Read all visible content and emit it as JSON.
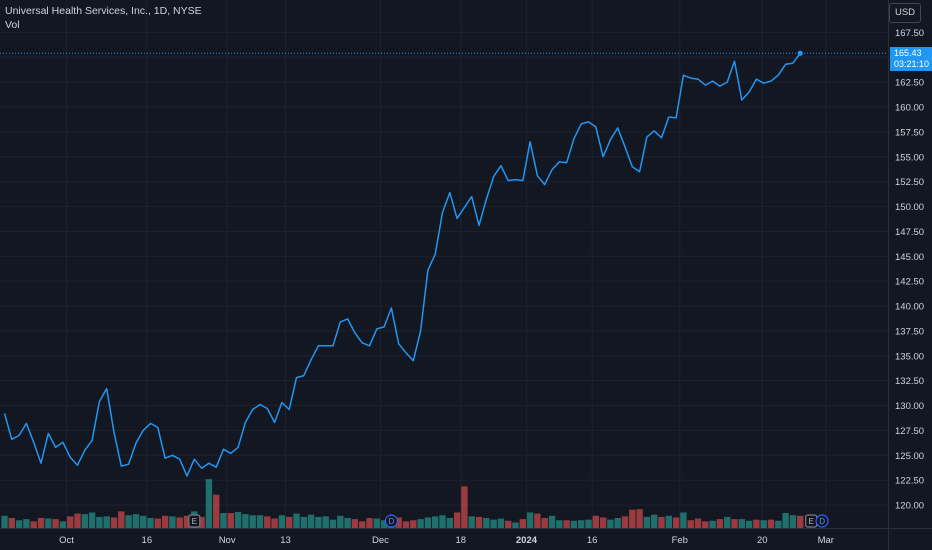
{
  "legend": {
    "symbol": "Universal Health Services, Inc., 1D, NYSE",
    "volume_label": "Vol"
  },
  "currency": "USD",
  "last_price": {
    "price": "165.43",
    "countdown": "03:21:10"
  },
  "colors": {
    "background": "#131722",
    "line": "#2196f3",
    "grid": "#1e222d",
    "volume_up": "#26a69a",
    "volume_down": "#ef5350",
    "axis_text": "#d1d4dc"
  },
  "chart_data": {
    "type": "line",
    "x_ticks": [
      "Oct",
      "16",
      "Nov",
      "13",
      "Dec",
      "18",
      "2024",
      "16",
      "Feb",
      "20",
      "Mar"
    ],
    "y_ticks": [
      "120.00",
      "122.50",
      "125.00",
      "127.50",
      "130.00",
      "132.50",
      "135.00",
      "137.50",
      "140.00",
      "142.50",
      "145.00",
      "147.50",
      "150.00",
      "152.50",
      "155.00",
      "157.50",
      "160.00",
      "162.50",
      "165.00",
      "167.50"
    ],
    "ylim": [
      118.3,
      169.2
    ],
    "x_range": [
      0,
      116.6
    ],
    "tick_index": [
      8.5,
      19.5,
      30.5,
      38.5,
      51.5,
      62.5,
      71.5,
      80.5,
      92.5,
      103.8,
      112.5
    ],
    "close": [
      129.2,
      126.6,
      127.0,
      128.2,
      126.3,
      124.2,
      127.2,
      125.8,
      126.3,
      124.8,
      124.0,
      125.5,
      126.5,
      130.4,
      131.7,
      127.3,
      123.9,
      124.1,
      126.2,
      127.5,
      128.2,
      127.8,
      124.7,
      125.0,
      124.6,
      122.9,
      124.6,
      123.7,
      124.2,
      123.8,
      125.6,
      125.2,
      125.8,
      128.3,
      129.6,
      130.1,
      129.7,
      128.3,
      130.3,
      129.6,
      132.8,
      133.0,
      134.6,
      136.0,
      136.0,
      136.0,
      138.4,
      138.7,
      137.3,
      136.3,
      136.0,
      137.7,
      137.9,
      139.8,
      136.2,
      135.3,
      134.5,
      137.5,
      143.6,
      145.2,
      149.4,
      151.4,
      148.8,
      149.9,
      151.0,
      148.1,
      150.7,
      153.0,
      154.1,
      152.6,
      152.7,
      152.6,
      156.5,
      153.1,
      152.2,
      153.7,
      154.5,
      154.4,
      156.8,
      158.3,
      158.5,
      158.0,
      155.0,
      156.7,
      157.9,
      156.0,
      154.0,
      153.5,
      157.0,
      157.6,
      156.9,
      159.0,
      158.9,
      163.2,
      162.9,
      162.8,
      162.2,
      162.6,
      162.1,
      162.5,
      164.6,
      160.7,
      161.5,
      162.8,
      162.4,
      162.6,
      163.2,
      164.3,
      164.4,
      165.4
    ],
    "volume": [
      22,
      18,
      14,
      16,
      12,
      18,
      17,
      16,
      12,
      21,
      26,
      25,
      28,
      20,
      21,
      19,
      30,
      23,
      25,
      22,
      18,
      17,
      22,
      21,
      19,
      22,
      30,
      20,
      88,
      60,
      27,
      27,
      29,
      25,
      23,
      23,
      21,
      17,
      23,
      20,
      26,
      20,
      24,
      20,
      21,
      15,
      22,
      18,
      16,
      12,
      18,
      17,
      14,
      16,
      19,
      12,
      14,
      16,
      19,
      21,
      23,
      18,
      28,
      75,
      21,
      20,
      18,
      15,
      17,
      13,
      10,
      16,
      28,
      26,
      18,
      22,
      14,
      14,
      13,
      14,
      15,
      22,
      19,
      15,
      18,
      21,
      33,
      34,
      20,
      24,
      20,
      22,
      19,
      28,
      14,
      17,
      12,
      13,
      16,
      20,
      16,
      16,
      13,
      15,
      14,
      15,
      13,
      27,
      23,
      22
    ],
    "volume_direction": [
      1,
      -1,
      1,
      1,
      -1,
      -1,
      1,
      -1,
      1,
      -1,
      -1,
      1,
      1,
      1,
      1,
      -1,
      -1,
      1,
      1,
      1,
      1,
      -1,
      -1,
      1,
      -1,
      -1,
      1,
      -1,
      1,
      -1,
      1,
      -1,
      1,
      1,
      1,
      1,
      -1,
      -1,
      1,
      -1,
      1,
      1,
      1,
      1,
      1,
      1,
      1,
      1,
      -1,
      -1,
      -1,
      1,
      1,
      1,
      -1,
      -1,
      -1,
      1,
      1,
      1,
      1,
      1,
      -1,
      -1,
      1,
      -1,
      1,
      1,
      1,
      -1,
      1,
      -1,
      1,
      -1,
      -1,
      1,
      1,
      -1,
      1,
      1,
      1,
      -1,
      -1,
      1,
      1,
      -1,
      -1,
      -1,
      1,
      1,
      -1,
      1,
      -1,
      1,
      -1,
      -1,
      -1,
      1,
      -1,
      1,
      -1,
      1,
      1,
      -1,
      1,
      -1,
      1,
      1,
      1,
      -1
    ],
    "event_markers": [
      {
        "index": 26,
        "label": "E"
      },
      {
        "index": 53,
        "label": "D"
      },
      {
        "index": 110.5,
        "label": "E"
      },
      {
        "index": 112,
        "label": "D"
      }
    ]
  }
}
